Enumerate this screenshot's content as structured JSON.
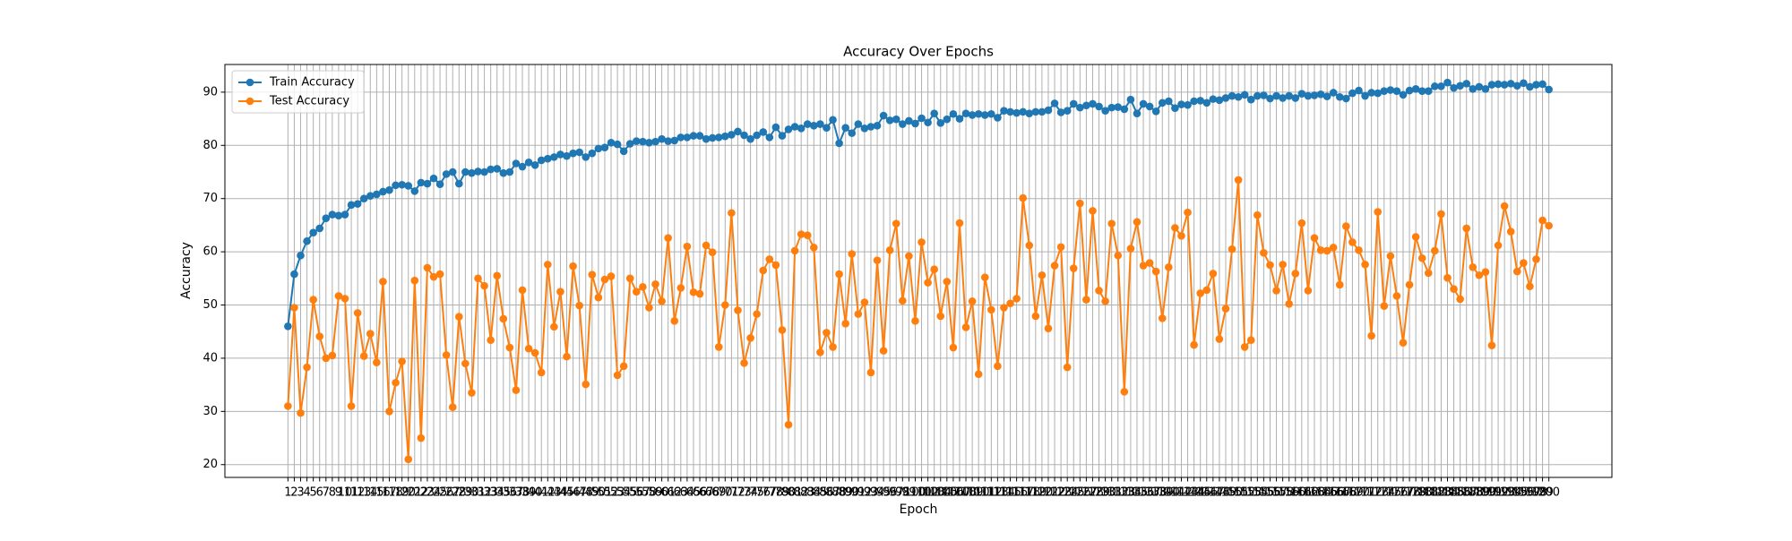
{
  "chart_data": {
    "type": "line",
    "title": "Accuracy Over Epochs",
    "x_label": "Epoch",
    "y_label": "Accuracy",
    "x": [
      1,
      2,
      3,
      4,
      5,
      6,
      7,
      8,
      9,
      10,
      11,
      12,
      13,
      14,
      15,
      16,
      17,
      18,
      19,
      20,
      21,
      22,
      23,
      24,
      25,
      26,
      27,
      28,
      29,
      30,
      31,
      32,
      33,
      34,
      35,
      36,
      37,
      38,
      39,
      40,
      41,
      42,
      43,
      44,
      45,
      46,
      47,
      48,
      49,
      50,
      51,
      52,
      53,
      54,
      55,
      56,
      57,
      58,
      59,
      60,
      61,
      62,
      63,
      64,
      65,
      66,
      67,
      68,
      69,
      70,
      71,
      72,
      73,
      74,
      75,
      76,
      77,
      78,
      79,
      80,
      81,
      82,
      83,
      84,
      85,
      86,
      87,
      88,
      89,
      90,
      91,
      92,
      93,
      94,
      95,
      96,
      97,
      98,
      99,
      100,
      101,
      102,
      103,
      104,
      105,
      106,
      107,
      108,
      109,
      110,
      111,
      112,
      113,
      114,
      115,
      116,
      117,
      118,
      119,
      120,
      121,
      122,
      123,
      124,
      125,
      126,
      127,
      128,
      129,
      130,
      131,
      132,
      133,
      134,
      135,
      136,
      137,
      138,
      139,
      140,
      141,
      142,
      143,
      144,
      145,
      146,
      147,
      148,
      149,
      150,
      151,
      152,
      153,
      154,
      155,
      156,
      157,
      158,
      159,
      160,
      161,
      162,
      163,
      164,
      165,
      166,
      167,
      168,
      169,
      170,
      171,
      172,
      173,
      174,
      175,
      176,
      177,
      178,
      179,
      180,
      181,
      182,
      183,
      184,
      185,
      186,
      187,
      188,
      189,
      190,
      191,
      192,
      193,
      194,
      195,
      196,
      197,
      198,
      199,
      200
    ],
    "series": [
      {
        "name": "Train Accuracy",
        "color": "#1f77b4",
        "values": [
          46,
          55.8,
          59.3,
          62,
          63.6,
          64.4,
          66.3,
          67,
          66.8,
          67,
          68.8,
          69,
          70,
          70.5,
          70.8,
          71.3,
          71.6,
          72.5,
          72.6,
          72.4,
          71.4,
          73,
          72.8,
          73.8,
          72.7,
          74.6,
          75,
          72.8,
          75,
          74.8,
          75.1,
          75,
          75.5,
          75.6,
          74.8,
          75,
          76.6,
          76,
          76.8,
          76.3,
          77.2,
          77.5,
          77.8,
          78.3,
          78,
          78.5,
          78.7,
          77.8,
          78.5,
          79.4,
          79.6,
          80.5,
          80.2,
          78.9,
          80.3,
          80.8,
          80.7,
          80.5,
          80.7,
          81.2,
          80.8,
          80.9,
          81.5,
          81.5,
          81.8,
          81.8,
          81.2,
          81.4,
          81.5,
          81.7,
          82,
          82.6,
          81.9,
          81.2,
          81.9,
          82.5,
          81.5,
          83.4,
          81.8,
          83,
          83.5,
          83.2,
          84,
          83.7,
          84,
          83.3,
          84.8,
          80.4,
          83.3,
          82.3,
          84,
          83.2,
          83.5,
          83.7,
          85.6,
          84.7,
          84.9,
          84,
          84.6,
          84.1,
          85.1,
          84.3,
          86,
          84.2,
          84.9,
          85.9,
          85,
          86,
          85.7,
          85.9,
          85.7,
          85.9,
          85.2,
          86.5,
          86.3,
          86.1,
          86.3,
          86,
          86.3,
          86.3,
          86.6,
          87.9,
          86.2,
          86.5,
          87.8,
          87.1,
          87.5,
          87.8,
          87.3,
          86.5,
          87.1,
          87.2,
          86.8,
          88.6,
          86,
          87.8,
          87.3,
          86.4,
          88,
          88.3,
          87,
          87.7,
          87.6,
          88.3,
          88.4,
          88,
          88.7,
          88.5,
          88.9,
          89.3,
          89.1,
          89.5,
          88.6,
          89.3,
          89.4,
          88.8,
          89.3,
          88.9,
          89.3,
          88.9,
          89.7,
          89.3,
          89.4,
          89.6,
          89.2,
          89.9,
          89.1,
          88.8,
          89.8,
          90.3,
          89.3,
          89.9,
          89.8,
          90.2,
          90.4,
          90.2,
          89.5,
          90.3,
          90.6,
          90.2,
          90.2,
          91.1,
          91.1,
          91.8,
          90.8,
          91.2,
          91.6,
          90.6,
          91,
          90.6,
          91.4,
          91.5,
          91.4,
          91.6,
          91.2,
          91.7,
          91,
          91.4,
          91.5,
          90.5
        ]
      },
      {
        "name": "Test Accuracy",
        "color": "#ff7f0e",
        "values": [
          31,
          49.5,
          29.7,
          38.3,
          51,
          44.1,
          40,
          40.5,
          51.7,
          51.2,
          31,
          48.5,
          40.4,
          44.6,
          39.2,
          54.4,
          30,
          35.4,
          39.4,
          21,
          54.6,
          25,
          57,
          55.3,
          55.8,
          40.6,
          30.8,
          47.8,
          39,
          33.5,
          55,
          53.6,
          43.4,
          55.5,
          47.4,
          42,
          34,
          52.8,
          41.8,
          41,
          37.3,
          57.6,
          45.9,
          52.5,
          40.3,
          57.3,
          49.9,
          35.1,
          55.7,
          51.4,
          54.8,
          55.4,
          36.8,
          38.5,
          55,
          52.5,
          53.4,
          49.5,
          53.9,
          50.7,
          62.6,
          47,
          53.2,
          61,
          52.4,
          52.1,
          61.2,
          59.9,
          42.1,
          50,
          67.3,
          49,
          39.1,
          43.8,
          48.3,
          56.5,
          58.6,
          57.5,
          45.3,
          27.5,
          60.2,
          63.3,
          63.1,
          60.8,
          41.1,
          44.8,
          42.1,
          55.8,
          46.5,
          59.6,
          48.3,
          50.5,
          37.3,
          58.4,
          41.4,
          60.3,
          65.3,
          50.8,
          59.2,
          47,
          61.8,
          54.2,
          56.7,
          47.9,
          54.4,
          42,
          65.4,
          45.8,
          50.7,
          37,
          55.2,
          49.1,
          38.5,
          49.5,
          50.3,
          51.2,
          70.1,
          61.2,
          47.9,
          55.6,
          45.6,
          57.4,
          60.9,
          38.3,
          56.9,
          69.1,
          51,
          67.7,
          52.7,
          50.7,
          65.3,
          59.3,
          33.7,
          60.6,
          65.6,
          57.4,
          57.9,
          56.3,
          47.5,
          57.1,
          64.5,
          63,
          67.4,
          42.5,
          52.2,
          52.8,
          55.9,
          43.6,
          49.3,
          60.5,
          73.5,
          42.1,
          43.4,
          66.9,
          59.8,
          57.5,
          52.7,
          57.6,
          50.2,
          55.9,
          65.4,
          52.7,
          62.6,
          60.3,
          60.2,
          60.8,
          53.8,
          64.8,
          61.8,
          60.3,
          57.6,
          44.2,
          67.5,
          49.8,
          59.2,
          51.7,
          42.9,
          53.8,
          62.8,
          58.8,
          56,
          60.2,
          67.1,
          55.1,
          53,
          51.1,
          64.4,
          57.1,
          55.6,
          56.2,
          42.4,
          61.2,
          68.6,
          63.8,
          56.3,
          57.9,
          53.5,
          58.6,
          65.9,
          64.9
        ]
      }
    ],
    "xlim": [
      -8.95,
      209.95
    ],
    "xticks": [
      1,
      2,
      3,
      4,
      5,
      6,
      7,
      8,
      9,
      10,
      11,
      12,
      13,
      14,
      15,
      16,
      17,
      18,
      19,
      20,
      21,
      22,
      23,
      24,
      25,
      26,
      27,
      28,
      29,
      30,
      31,
      32,
      33,
      34,
      35,
      36,
      37,
      38,
      39,
      40,
      41,
      42,
      43,
      44,
      45,
      46,
      47,
      48,
      49,
      50,
      51,
      52,
      53,
      54,
      55,
      56,
      57,
      58,
      59,
      60,
      61,
      62,
      63,
      64,
      65,
      66,
      67,
      68,
      69,
      70,
      71,
      72,
      73,
      74,
      75,
      76,
      77,
      78,
      79,
      80,
      81,
      82,
      83,
      84,
      85,
      86,
      87,
      88,
      89,
      90,
      91,
      92,
      93,
      94,
      95,
      96,
      97,
      98,
      99,
      100,
      101,
      102,
      103,
      104,
      105,
      106,
      107,
      108,
      109,
      110,
      111,
      112,
      113,
      114,
      115,
      116,
      117,
      118,
      119,
      120,
      121,
      122,
      123,
      124,
      125,
      126,
      127,
      128,
      129,
      130,
      131,
      132,
      133,
      134,
      135,
      136,
      137,
      138,
      139,
      140,
      141,
      142,
      143,
      144,
      145,
      146,
      147,
      148,
      149,
      150,
      151,
      152,
      153,
      154,
      155,
      156,
      157,
      158,
      159,
      160,
      161,
      162,
      163,
      164,
      165,
      166,
      167,
      168,
      169,
      170,
      171,
      172,
      173,
      174,
      175,
      176,
      177,
      178,
      179,
      180,
      181,
      182,
      183,
      184,
      185,
      186,
      187,
      188,
      189,
      190,
      191,
      192,
      193,
      194,
      195,
      196,
      197,
      198,
      199,
      200
    ],
    "ylim": [
      17.6,
      95.2
    ],
    "yticks": [
      20,
      30,
      40,
      50,
      60,
      70,
      80,
      90
    ],
    "grid": true,
    "legend": "upper-left"
  }
}
